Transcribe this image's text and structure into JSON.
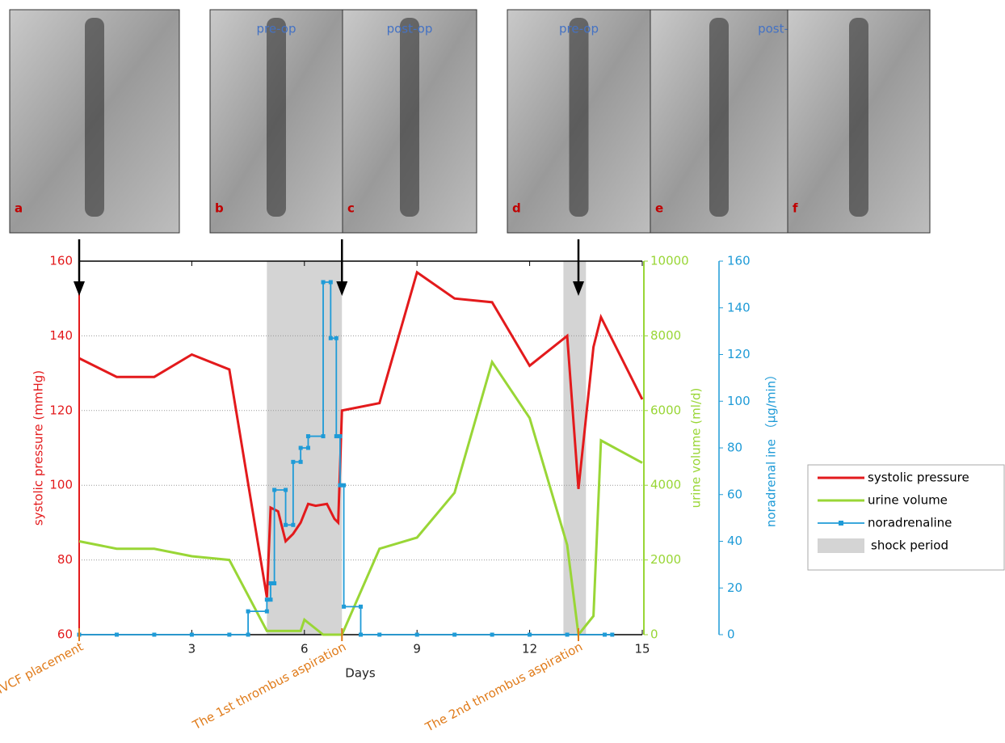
{
  "chart_data": {
    "type": "line",
    "x_label": "Days",
    "y_label": "systolic pressure (mmHg)",
    "y2_label": "urine volume (ml/d)",
    "y3_label": "noradrenal ine （μg/min）",
    "xlim": [
      0,
      15
    ],
    "xticks": [
      3,
      6,
      9,
      12,
      15
    ],
    "ylim": [
      60,
      160
    ],
    "yticks": [
      60,
      80,
      100,
      120,
      140,
      160
    ],
    "y2lim": [
      0,
      10000
    ],
    "y2ticks": [
      0,
      2000,
      4000,
      6000,
      8000,
      10000
    ],
    "y3lim": [
      0,
      160
    ],
    "y3ticks": [
      0,
      20,
      40,
      60,
      80,
      100,
      120,
      140,
      160
    ],
    "grid": true,
    "legend": "right",
    "shock": {
      "name": "shock period",
      "color": "#d4d4d4",
      "periods": [
        [
          5,
          7
        ],
        [
          12.9,
          13.5
        ]
      ]
    },
    "annotations": [
      {
        "text": "IVCF placement",
        "x": 0
      },
      {
        "text": "The 1st thrombus aspiration",
        "x": 7
      },
      {
        "text": "The 2nd thrombus aspiration",
        "x": 13.3
      }
    ],
    "series": [
      {
        "name": "systolic pressure",
        "color": "#e31a1c",
        "axis": "y",
        "x": [
          0,
          1,
          2,
          3,
          4,
          5,
          5.1,
          5.3,
          5.5,
          5.7,
          5.9,
          6.1,
          6.3,
          6.6,
          6.8,
          6.9,
          7,
          8,
          9,
          10,
          11,
          12,
          13,
          13.3,
          13.7,
          13.9,
          15
        ],
        "values": [
          134,
          129,
          129,
          135,
          131,
          70,
          94,
          93,
          85,
          87,
          90,
          95,
          94.5,
          95,
          91,
          90,
          120,
          122,
          157,
          150,
          149,
          132,
          140,
          99,
          137,
          145,
          123
        ]
      },
      {
        "name": "urine volume",
        "color": "#99d636",
        "axis": "y2",
        "x": [
          0,
          1,
          2,
          3,
          4,
          5,
          5.9,
          6,
          6.5,
          7,
          8,
          9,
          10,
          11,
          12,
          13,
          13.3,
          13.7,
          13.9,
          15
        ],
        "values": [
          2500,
          2300,
          2300,
          2100,
          2000,
          100,
          100,
          400,
          0,
          0,
          2300,
          2600,
          3800,
          7300,
          5800,
          2400,
          0,
          500,
          5200,
          4600
        ]
      },
      {
        "name": "noradrenaline",
        "color": "#1f9bd7",
        "axis": "y3",
        "x": [
          0,
          1,
          2,
          3,
          4,
          4.5,
          4.5,
          5,
          5,
          5.1,
          5.1,
          5.2,
          5.2,
          5.5,
          5.5,
          5.7,
          5.7,
          5.9,
          5.9,
          6.1,
          6.1,
          6.5,
          6.5,
          6.7,
          6.7,
          6.85,
          6.85,
          6.95,
          6.95,
          7.05,
          7.05,
          7.5,
          7.5,
          8,
          9,
          10,
          11,
          12,
          13,
          14,
          14.2
        ],
        "values": [
          0,
          0,
          0,
          0,
          0,
          0,
          10,
          10,
          15,
          15,
          22,
          22,
          62,
          62,
          47,
          47,
          74,
          74,
          80,
          80,
          85,
          85,
          151,
          151,
          127,
          127,
          85,
          85,
          64,
          64,
          12,
          12,
          0,
          0,
          0,
          0,
          0,
          0,
          0,
          0,
          0
        ]
      }
    ],
    "panels": [
      {
        "letter": "a"
      },
      {
        "letter": "b",
        "caption": "pre-op"
      },
      {
        "letter": "c",
        "caption": "post-op"
      },
      {
        "letter": "d",
        "caption": "pre-op"
      },
      {
        "letter": "e",
        "caption": "post-op"
      },
      {
        "letter": "f"
      }
    ]
  }
}
